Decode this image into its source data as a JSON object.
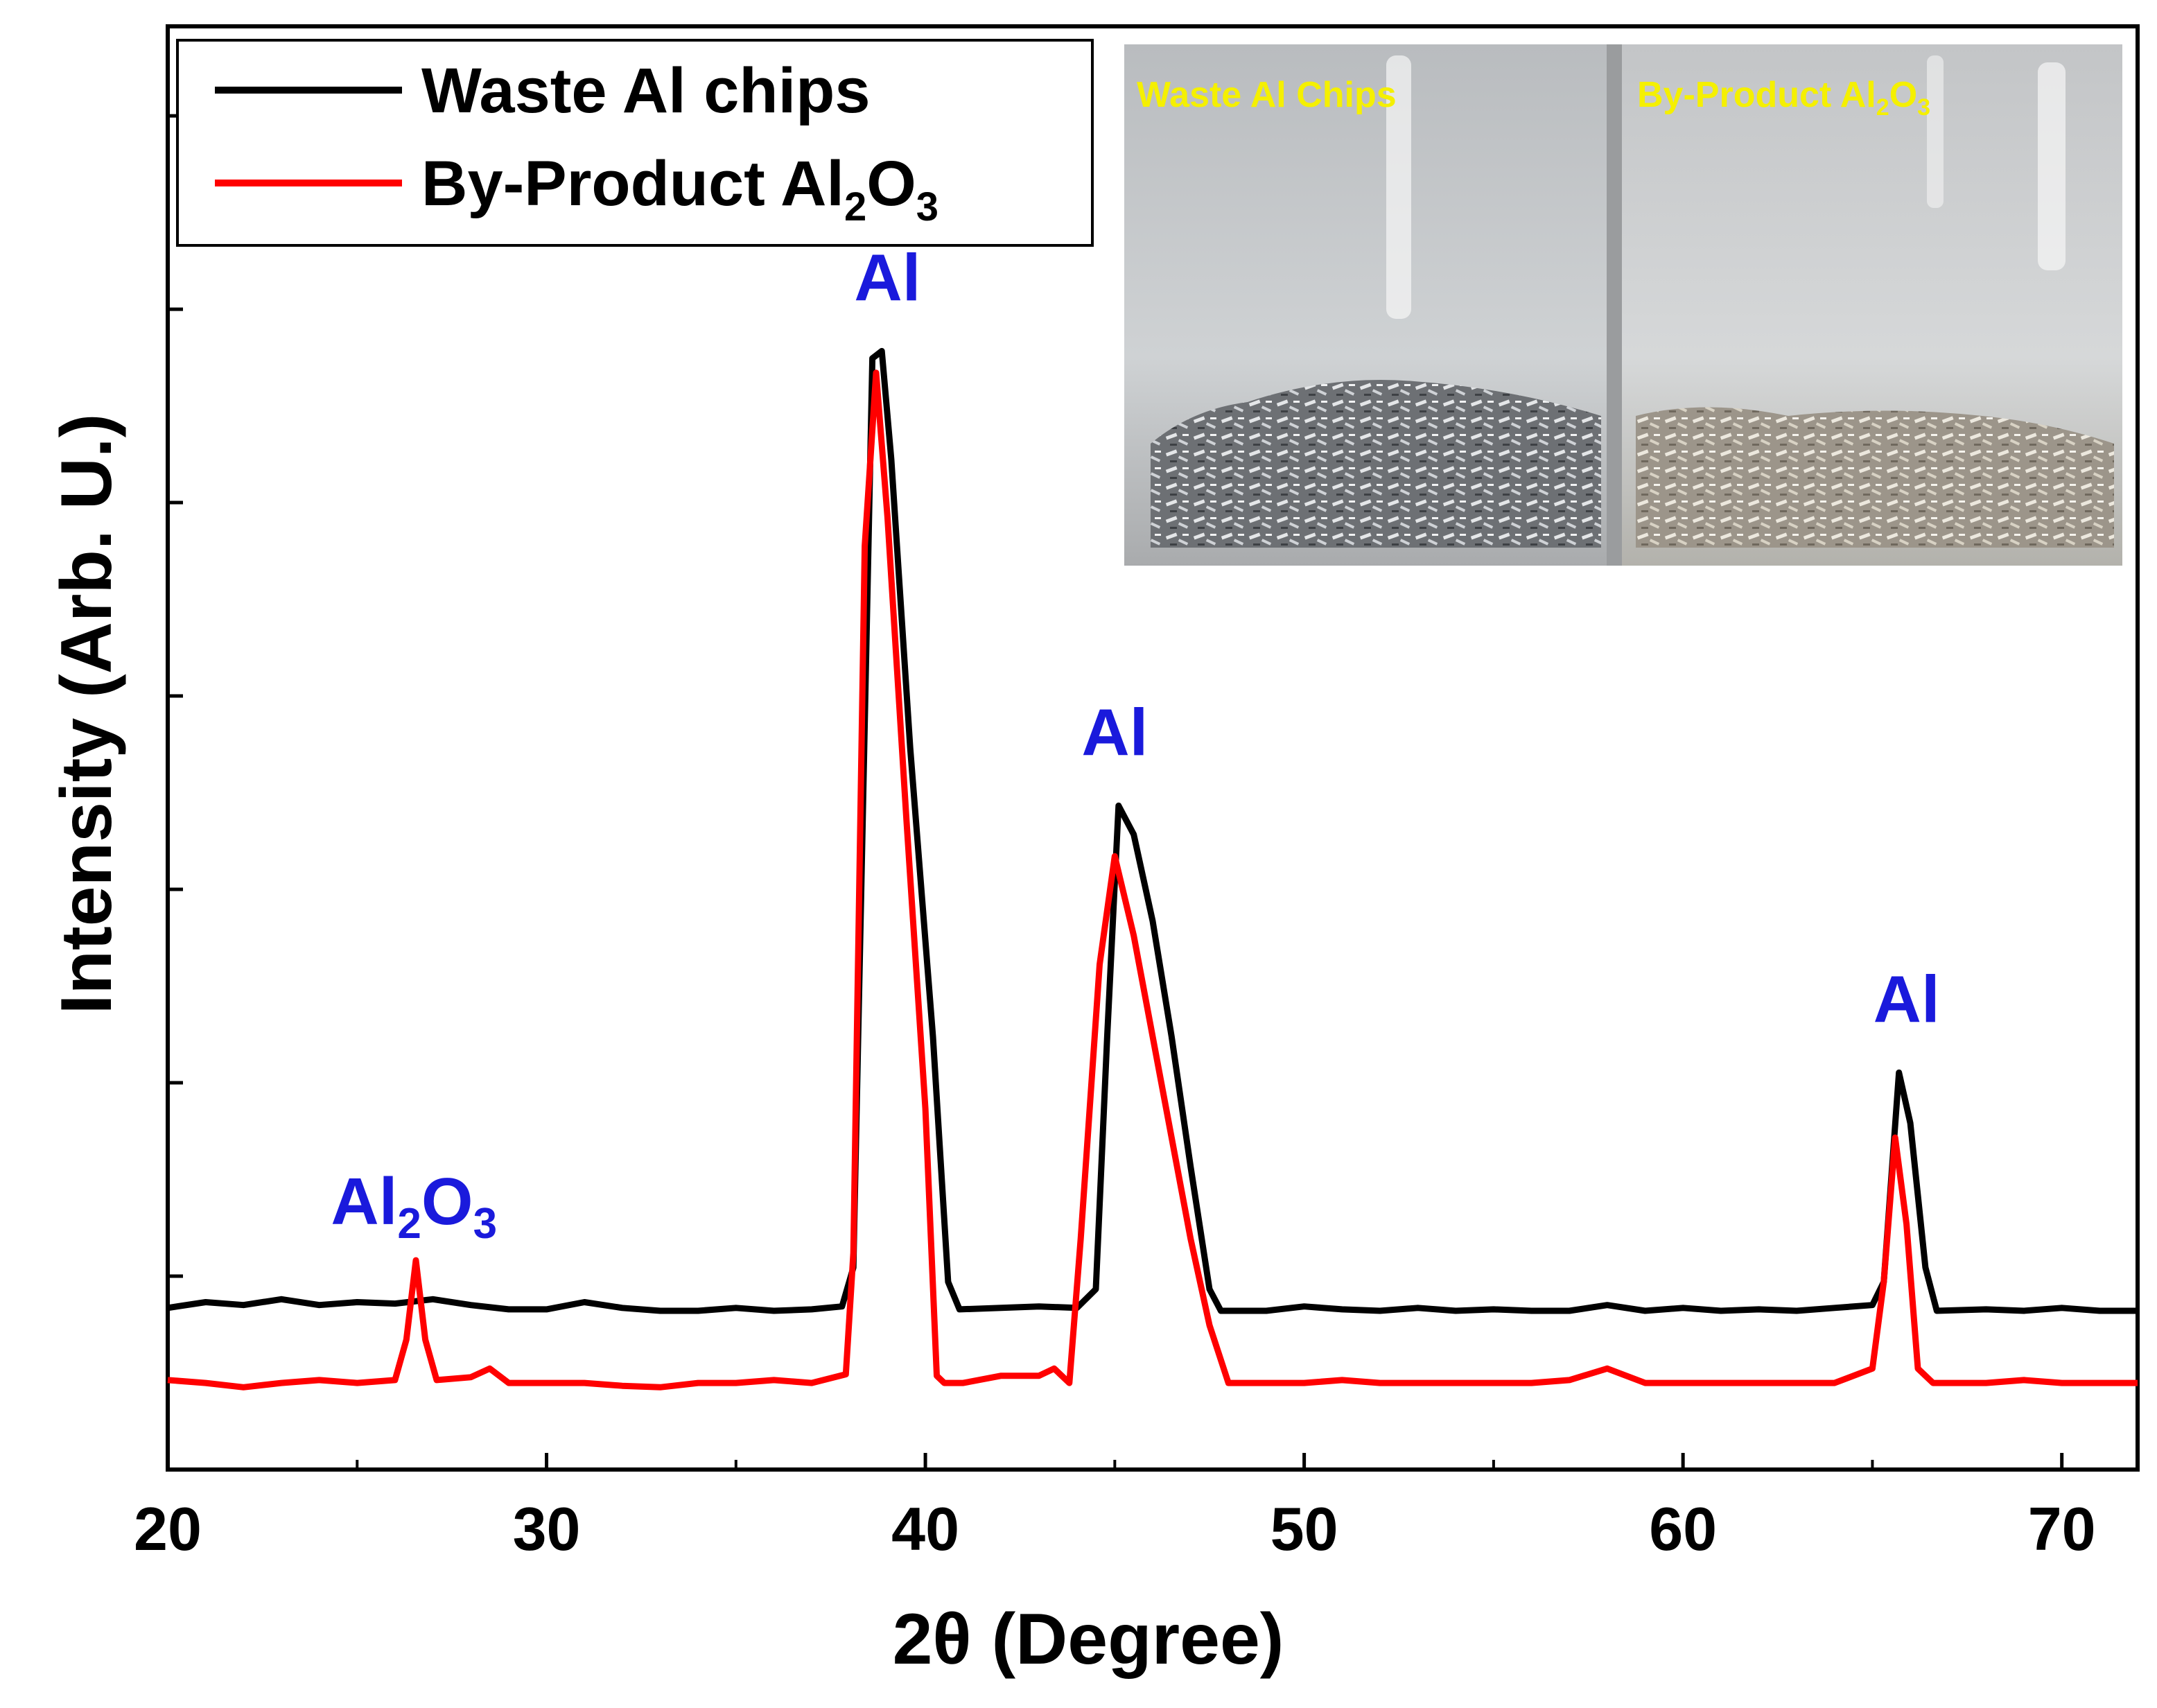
{
  "chart_data": {
    "type": "line",
    "xlabel": "2θ (Degree)",
    "ylabel": "Intensity (Arb. U.)",
    "xlim": [
      20,
      72
    ],
    "ylim": [
      0,
      100
    ],
    "x_ticks": [
      20,
      30,
      40,
      50,
      60,
      70
    ],
    "y_ticks_labeled": false,
    "grid": false,
    "legend_position": "top-left",
    "series": [
      {
        "name": "Waste Al chips",
        "color": "#000000",
        "points": [
          [
            20.0,
            11.2
          ],
          [
            21.0,
            11.6
          ],
          [
            22.0,
            11.4
          ],
          [
            23.0,
            11.8
          ],
          [
            24.0,
            11.4
          ],
          [
            25.0,
            11.6
          ],
          [
            26.0,
            11.5
          ],
          [
            27.0,
            11.8
          ],
          [
            28.0,
            11.4
          ],
          [
            29.0,
            11.1
          ],
          [
            30.0,
            11.1
          ],
          [
            31.0,
            11.6
          ],
          [
            32.0,
            11.2
          ],
          [
            33.0,
            11.0
          ],
          [
            34.0,
            11.0
          ],
          [
            35.0,
            11.2
          ],
          [
            36.0,
            11.0
          ],
          [
            37.0,
            11.1
          ],
          [
            37.8,
            11.3
          ],
          [
            38.1,
            14.0
          ],
          [
            38.6,
            77.0
          ],
          [
            38.85,
            77.5
          ],
          [
            39.1,
            70.0
          ],
          [
            39.6,
            50.0
          ],
          [
            40.2,
            30.0
          ],
          [
            40.6,
            13.0
          ],
          [
            40.9,
            11.1
          ],
          [
            42.0,
            11.2
          ],
          [
            43.0,
            11.3
          ],
          [
            44.0,
            11.2
          ],
          [
            44.5,
            12.5
          ],
          [
            44.8,
            30.0
          ],
          [
            45.1,
            46.0
          ],
          [
            45.5,
            44.0
          ],
          [
            46.0,
            38.0
          ],
          [
            46.5,
            30.0
          ],
          [
            47.0,
            21.0
          ],
          [
            47.5,
            12.5
          ],
          [
            47.8,
            11.0
          ],
          [
            49.0,
            11.0
          ],
          [
            50.0,
            11.3
          ],
          [
            51.0,
            11.1
          ],
          [
            52.0,
            11.0
          ],
          [
            53.0,
            11.2
          ],
          [
            54.0,
            11.0
          ],
          [
            55.0,
            11.1
          ],
          [
            56.0,
            11.0
          ],
          [
            57.0,
            11.0
          ],
          [
            58.0,
            11.4
          ],
          [
            59.0,
            11.0
          ],
          [
            60.0,
            11.2
          ],
          [
            61.0,
            11.0
          ],
          [
            62.0,
            11.1
          ],
          [
            63.0,
            11.0
          ],
          [
            64.0,
            11.2
          ],
          [
            65.0,
            11.4
          ],
          [
            65.3,
            13.0
          ],
          [
            65.7,
            27.5
          ],
          [
            66.0,
            24.0
          ],
          [
            66.4,
            14.0
          ],
          [
            66.7,
            11.0
          ],
          [
            68.0,
            11.1
          ],
          [
            69.0,
            11.0
          ],
          [
            70.0,
            11.2
          ],
          [
            71.0,
            11.0
          ],
          [
            72.0,
            11.0
          ]
        ]
      },
      {
        "name": "By-Product Al2O3",
        "color": "#ff0000",
        "points": [
          [
            20.0,
            6.2
          ],
          [
            21.0,
            6.0
          ],
          [
            22.0,
            5.7
          ],
          [
            23.0,
            6.0
          ],
          [
            24.0,
            6.2
          ],
          [
            25.0,
            6.0
          ],
          [
            26.0,
            6.2
          ],
          [
            26.3,
            9.0
          ],
          [
            26.55,
            14.5
          ],
          [
            26.8,
            9.0
          ],
          [
            27.1,
            6.2
          ],
          [
            28.0,
            6.4
          ],
          [
            28.5,
            7.0
          ],
          [
            29.0,
            6.0
          ],
          [
            30.0,
            6.0
          ],
          [
            31.0,
            6.0
          ],
          [
            32.0,
            5.8
          ],
          [
            33.0,
            5.7
          ],
          [
            34.0,
            6.0
          ],
          [
            35.0,
            6.0
          ],
          [
            36.0,
            6.2
          ],
          [
            37.0,
            6.0
          ],
          [
            37.9,
            6.6
          ],
          [
            38.1,
            15.0
          ],
          [
            38.4,
            64.0
          ],
          [
            38.7,
            76.0
          ],
          [
            39.0,
            66.0
          ],
          [
            39.5,
            45.0
          ],
          [
            40.0,
            25.0
          ],
          [
            40.3,
            6.5
          ],
          [
            40.5,
            6.0
          ],
          [
            41.0,
            6.0
          ],
          [
            42.0,
            6.5
          ],
          [
            43.0,
            6.5
          ],
          [
            43.4,
            7.0
          ],
          [
            43.8,
            6.0
          ],
          [
            44.1,
            16.0
          ],
          [
            44.6,
            35.0
          ],
          [
            45.0,
            42.5
          ],
          [
            45.5,
            37.0
          ],
          [
            46.0,
            30.0
          ],
          [
            46.5,
            23.0
          ],
          [
            47.0,
            16.0
          ],
          [
            47.5,
            10.0
          ],
          [
            48.0,
            6.0
          ],
          [
            49.0,
            6.0
          ],
          [
            50.0,
            6.0
          ],
          [
            51.0,
            6.2
          ],
          [
            52.0,
            6.0
          ],
          [
            53.0,
            6.0
          ],
          [
            54.0,
            6.0
          ],
          [
            55.0,
            6.0
          ],
          [
            56.0,
            6.0
          ],
          [
            57.0,
            6.2
          ],
          [
            58.0,
            7.0
          ],
          [
            59.0,
            6.0
          ],
          [
            60.0,
            6.0
          ],
          [
            61.0,
            6.0
          ],
          [
            62.0,
            6.0
          ],
          [
            63.0,
            6.0
          ],
          [
            64.0,
            6.0
          ],
          [
            65.0,
            7.0
          ],
          [
            65.3,
            13.0
          ],
          [
            65.6,
            23.0
          ],
          [
            65.9,
            17.0
          ],
          [
            66.2,
            7.0
          ],
          [
            66.6,
            6.0
          ],
          [
            68.0,
            6.0
          ],
          [
            69.0,
            6.2
          ],
          [
            70.0,
            6.0
          ],
          [
            71.0,
            6.0
          ],
          [
            72.0,
            6.0
          ]
        ]
      }
    ],
    "annotations": [
      {
        "id": "al2o3",
        "text": "Al2O3",
        "base": "Al",
        "sub1": "2",
        "mid": "O",
        "sub2": "3",
        "x": 26.5,
        "y": 17.0
      },
      {
        "id": "al1",
        "text": "Al",
        "x": 39.0,
        "y": 81.0
      },
      {
        "id": "al2",
        "text": "Al",
        "x": 45.0,
        "y": 49.5
      },
      {
        "id": "al3",
        "text": "Al",
        "x": 65.9,
        "y": 31.0
      }
    ]
  },
  "legend": {
    "item1": "Waste Al chips",
    "item2_base": "By-Product Al",
    "item2_sub1": "2",
    "item2_mid": "O",
    "item2_sub2": "3"
  },
  "inset": {
    "left_label": "Waste Al Chips",
    "right_label_base": "By-Product Al",
    "right_label_sub1": "2",
    "right_label_mid": "O",
    "right_label_sub2": "3"
  }
}
